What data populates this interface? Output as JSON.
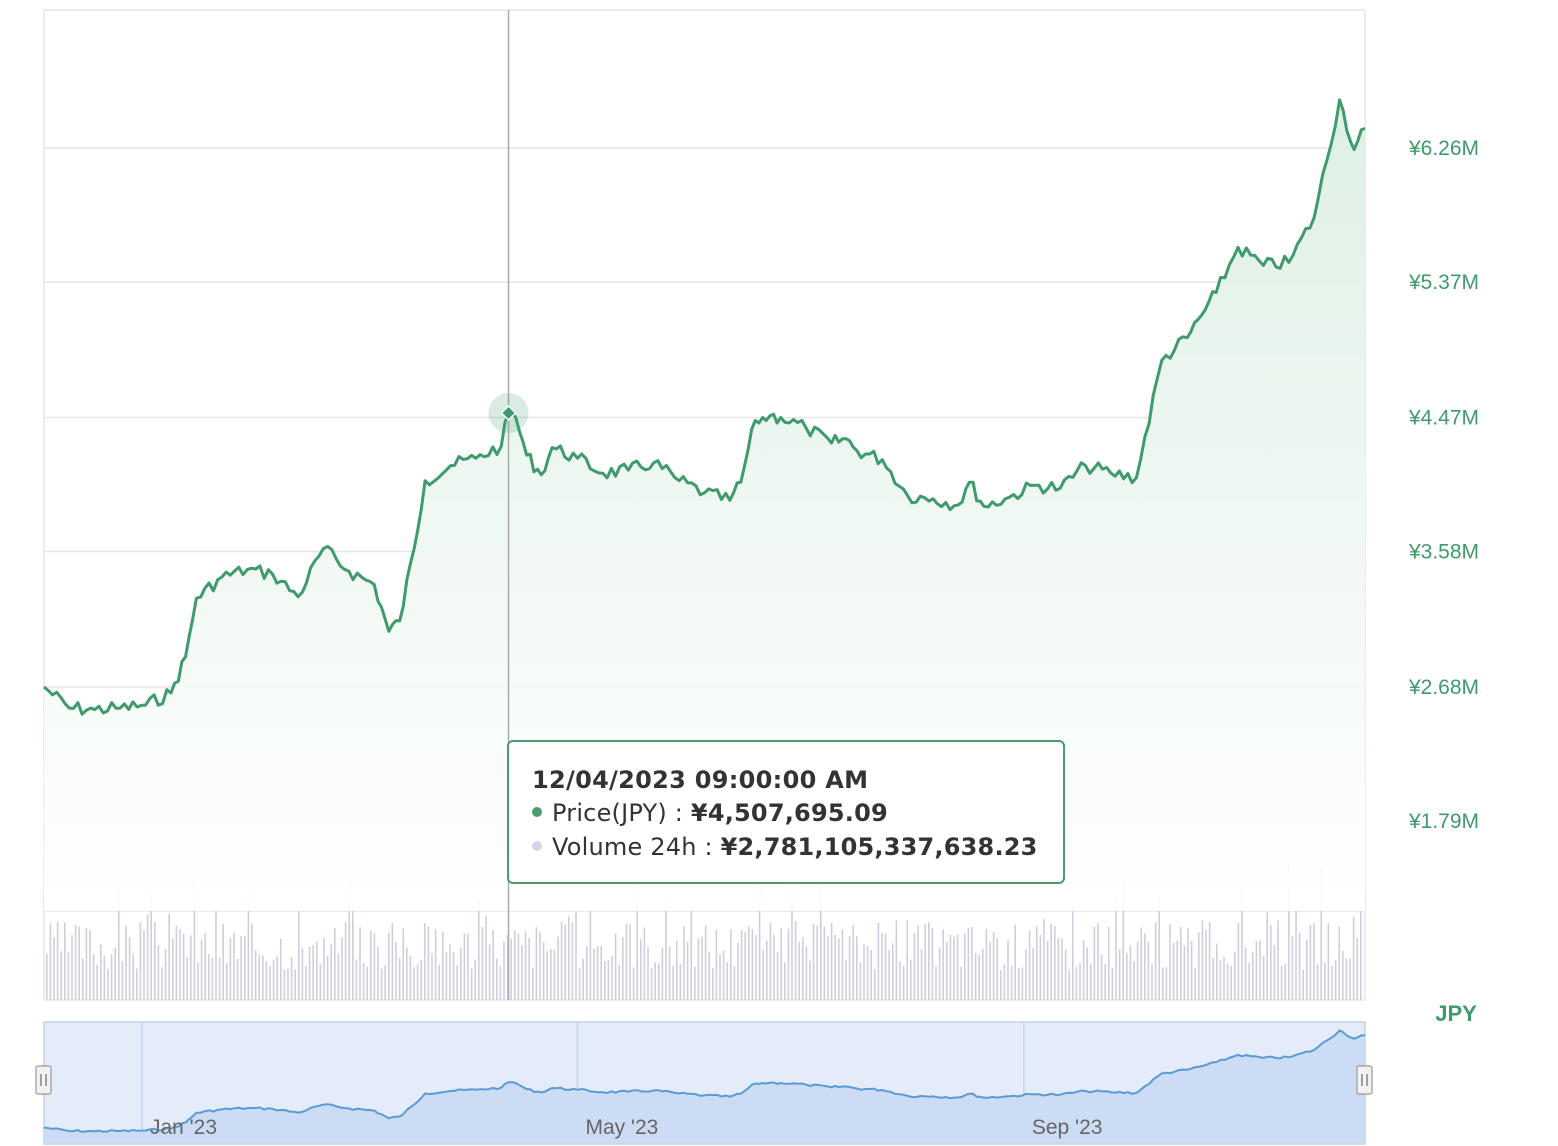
{
  "chart_data": {
    "type": "area",
    "currency_label": "JPY",
    "colors": {
      "price_line": "#3f9a6c",
      "price_fill": "#e8f5ee",
      "volume": "#cdd0dc",
      "navigator": "#5b9bd5"
    },
    "y_axis": {
      "ticks": [
        {
          "value": 1790000,
          "label": "¥1.79M"
        },
        {
          "value": 2680000,
          "label": "¥2.68M"
        },
        {
          "value": 3580000,
          "label": "¥3.58M"
        },
        {
          "value": 4470000,
          "label": "¥4.47M"
        },
        {
          "value": 5370000,
          "label": "¥5.37M"
        },
        {
          "value": 6260000,
          "label": "¥6.26M"
        }
      ],
      "range": [
        1790000,
        6260000
      ],
      "grid": true,
      "position": "right"
    },
    "x_axis": {
      "range": [
        "2022-12-05",
        "2023-12-04"
      ],
      "ticks": [
        {
          "date": "2023-01-01",
          "label": "Jan '23"
        },
        {
          "date": "2023-05-01",
          "label": "May '23"
        },
        {
          "date": "2023-09-01",
          "label": "Sep '23"
        }
      ]
    },
    "series": [
      {
        "name": "Price(JPY)",
        "x": [
          "2022-12-05",
          "2022-12-12",
          "2022-12-19",
          "2022-12-26",
          "2023-01-02",
          "2023-01-09",
          "2023-01-13",
          "2023-01-16",
          "2023-01-23",
          "2023-01-30",
          "2023-02-06",
          "2023-02-13",
          "2023-02-20",
          "2023-02-27",
          "2023-03-06",
          "2023-03-10",
          "2023-03-13",
          "2023-03-17",
          "2023-03-20",
          "2023-03-27",
          "2023-04-03",
          "2023-04-10",
          "2023-04-12",
          "2023-04-14",
          "2023-04-17",
          "2023-04-21",
          "2023-04-24",
          "2023-05-01",
          "2023-05-08",
          "2023-05-15",
          "2023-05-22",
          "2023-05-29",
          "2023-06-05",
          "2023-06-12",
          "2023-06-15",
          "2023-06-19",
          "2023-06-23",
          "2023-06-26",
          "2023-07-03",
          "2023-07-10",
          "2023-07-14",
          "2023-07-17",
          "2023-07-24",
          "2023-07-31",
          "2023-08-07",
          "2023-08-14",
          "2023-08-17",
          "2023-08-21",
          "2023-08-28",
          "2023-09-04",
          "2023-09-11",
          "2023-09-18",
          "2023-09-25",
          "2023-10-02",
          "2023-10-09",
          "2023-10-16",
          "2023-10-20",
          "2023-10-24",
          "2023-10-30",
          "2023-11-06",
          "2023-11-13",
          "2023-11-20",
          "2023-11-27",
          "2023-12-01",
          "2023-12-04"
        ],
        "values": [
          2680000,
          2540000,
          2530000,
          2540000,
          2560000,
          2640000,
          2880000,
          3270000,
          3410000,
          3460000,
          3430000,
          3280000,
          3600000,
          3450000,
          3360000,
          3050000,
          3120000,
          3600000,
          4050000,
          4150000,
          4200000,
          4280000,
          4500000,
          4470000,
          4220000,
          4090000,
          4270000,
          4200000,
          4100000,
          4120000,
          4170000,
          4050000,
          3970000,
          3920000,
          4040000,
          4450000,
          4480000,
          4470000,
          4400000,
          4300000,
          4330000,
          4250000,
          4190000,
          3950000,
          3930000,
          3890000,
          4040000,
          3880000,
          3940000,
          4020000,
          4000000,
          4150000,
          4100000,
          4070000,
          4850000,
          5000000,
          5150000,
          5300000,
          5600000,
          5480000,
          5500000,
          5800000,
          6580000,
          6250000,
          6390000
        ]
      },
      {
        "name": "Volume 24h",
        "unit": "JPY"
      }
    ],
    "tooltip": {
      "date": "12/04/2023 09:00:00 AM",
      "price_label": "Price(JPY)",
      "price_value": "¥4,507,695.09",
      "volume_label": "Volume 24h",
      "volume_value": "¥2,781,105,337,638.23",
      "crosshair_date": "2023-04-12"
    },
    "navigator": {
      "ticks": [
        {
          "date": "2023-01-01",
          "label": "Jan '23"
        },
        {
          "date": "2023-05-01",
          "label": "May '23"
        },
        {
          "date": "2023-09-01",
          "label": "Sep '23"
        }
      ]
    }
  }
}
